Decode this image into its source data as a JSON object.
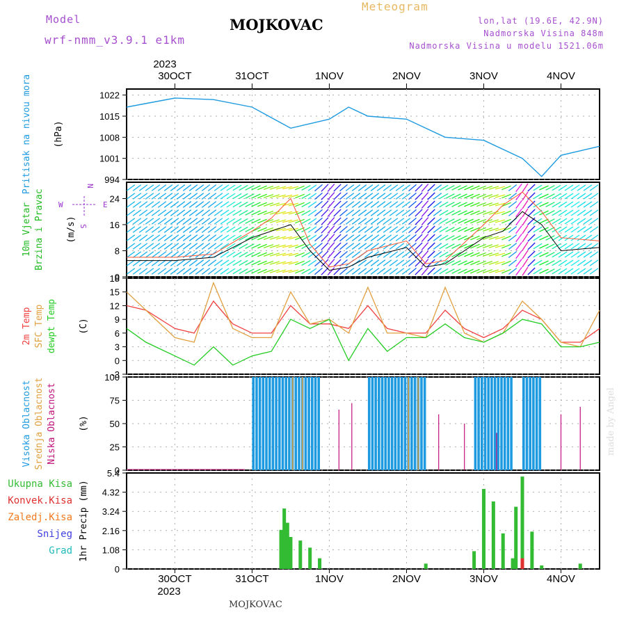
{
  "header": {
    "model_label": "Model",
    "model_name": "wrf-nmm_v3.9.1 e1km",
    "station": "MOJKOVAC",
    "product": "Meteogram",
    "lonlat": "lon,lat (19.6E, 42.9N)",
    "elevation": "Nadmorska Visina 848m",
    "model_elevation": "Nadmorska Visina u modelu 1521.06m",
    "footer_station": "MOJKOVAC",
    "credit": "made by Angel"
  },
  "colors": {
    "pressure": "#1e9be0",
    "wind_speed_lbl": "#22bb22",
    "temp2m": "#f04040",
    "sfc": "#e0a040",
    "dewpt": "#22cc22",
    "cloud_high": "#1e9be0",
    "cloud_mid": "#e0a040",
    "cloud_low": "#c0107a",
    "precip_total": "#33bb33",
    "precip_conv": "#e03030",
    "precip_frozen": "#f07a20",
    "snow": "#4040e0",
    "graupel": "#22bbbb",
    "compass": "#9933cc"
  },
  "time_axis": {
    "year": "2023",
    "days": [
      "30OCT",
      "31OCT",
      "1NOV",
      "2NOV",
      "3NOV",
      "4NOV"
    ],
    "start": "2023-10-29 09:00",
    "end": "2023-11-04 12:00"
  },
  "compass": {
    "north": "N",
    "east": "E",
    "south": "S",
    "west": "W"
  },
  "chart_data": [
    {
      "type": "line",
      "ylabel": [
        "Pritisak na nivou mora",
        "(hPa)"
      ],
      "yticks": [
        994,
        1001,
        1008,
        1015,
        1022
      ],
      "ylim": [
        994,
        1024
      ],
      "grid": true,
      "x": [
        "2023-10-29 09:00",
        "2023-10-30 00:00",
        "2023-10-30 12:00",
        "2023-10-31 00:00",
        "2023-10-31 12:00",
        "2023-11-01 00:00",
        "2023-11-01 06:00",
        "2023-11-01 12:00",
        "2023-11-02 00:00",
        "2023-11-02 12:00",
        "2023-11-03 00:00",
        "2023-11-03 12:00",
        "2023-11-03 18:00",
        "2023-11-04 00:00",
        "2023-11-04 12:00"
      ],
      "series": [
        {
          "values": [
            1018,
            1021,
            1020.5,
            1018,
            1011,
            1014,
            1018,
            1015,
            1014,
            1008,
            1007,
            1001,
            995,
            1002,
            1005
          ]
        }
      ]
    },
    {
      "type": "line",
      "ylabel": [
        "10m Vjetar",
        "Brzina i Pravac",
        "(m/s)"
      ],
      "yticks": [
        0,
        8,
        16,
        24
      ],
      "ylim": [
        0,
        29
      ],
      "grid": true,
      "x": [
        "2023-10-29 09:00",
        "2023-10-30 00:00",
        "2023-10-30 12:00",
        "2023-10-31 00:00",
        "2023-10-31 06:00",
        "2023-10-31 12:00",
        "2023-10-31 18:00",
        "2023-11-01 00:00",
        "2023-11-01 06:00",
        "2023-11-01 12:00",
        "2023-11-02 00:00",
        "2023-11-02 06:00",
        "2023-11-02 12:00",
        "2023-11-03 00:00",
        "2023-11-03 06:00",
        "2023-11-03 12:00",
        "2023-11-03 18:00",
        "2023-11-04 00:00",
        "2023-11-04 12:00"
      ],
      "series": [
        {
          "values": [
            5,
            5,
            6,
            12,
            14,
            16,
            8,
            2,
            3,
            6,
            9,
            3,
            4,
            12,
            14,
            20,
            16,
            8,
            9
          ]
        },
        {
          "values": [
            6,
            6,
            7,
            14,
            18,
            24,
            10,
            3,
            4,
            8,
            11,
            4,
            5,
            16,
            22,
            26,
            20,
            12,
            11
          ]
        }
      ]
    },
    {
      "type": "line",
      "ylabel": [
        "2m Temp",
        "SFC Temp",
        "dewpt Temp",
        "(C)"
      ],
      "yticks": [
        -3,
        0,
        3,
        6,
        9,
        12,
        15,
        18
      ],
      "ylim": [
        -3,
        18
      ],
      "grid": true,
      "x": [
        "2023-10-29 09:00",
        "2023-10-29 15:00",
        "2023-10-30 00:00",
        "2023-10-30 06:00",
        "2023-10-30 12:00",
        "2023-10-30 18:00",
        "2023-10-31 00:00",
        "2023-10-31 06:00",
        "2023-10-31 12:00",
        "2023-10-31 18:00",
        "2023-11-01 00:00",
        "2023-11-01 06:00",
        "2023-11-01 12:00",
        "2023-11-01 18:00",
        "2023-11-02 00:00",
        "2023-11-02 06:00",
        "2023-11-02 12:00",
        "2023-11-02 18:00",
        "2023-11-03 00:00",
        "2023-11-03 06:00",
        "2023-11-03 12:00",
        "2023-11-03 18:00",
        "2023-11-04 00:00",
        "2023-11-04 06:00",
        "2023-11-04 12:00"
      ],
      "series": [
        {
          "name": "2m Temp",
          "values": [
            12,
            11,
            7,
            6,
            13,
            8,
            6,
            6,
            12,
            8,
            8,
            7,
            12,
            7,
            6,
            6,
            11,
            7,
            5,
            7,
            11,
            9,
            4,
            4,
            7
          ]
        },
        {
          "name": "SFC Temp",
          "values": [
            15,
            11,
            5,
            4,
            17,
            7,
            5,
            5,
            15,
            8,
            9,
            6,
            16,
            6,
            6,
            5,
            16,
            6,
            4,
            6,
            13,
            9,
            4,
            3,
            11
          ]
        },
        {
          "name": "dewpt Temp",
          "values": [
            7,
            4,
            1,
            -1,
            3,
            -1,
            1,
            2,
            9,
            7,
            9,
            0,
            7,
            2,
            5,
            5,
            8,
            5,
            4,
            6,
            9,
            8,
            3,
            3,
            4
          ]
        }
      ]
    },
    {
      "type": "bar",
      "ylabel": [
        "Visoka Oblacnost",
        "Srednja Oblacnost",
        "Niska Oblacnost",
        "(%)"
      ],
      "yticks": [
        0,
        25,
        50,
        75,
        100
      ],
      "ylim": [
        0,
        100
      ],
      "grid": true,
      "series": [
        {
          "name": "Visoka Oblacnost",
          "ranges": [
            [
              "2023-10-31 00:00",
              "2023-10-31 21:00",
              100
            ],
            [
              "2023-11-01 12:00",
              "2023-11-02 06:00",
              100
            ],
            [
              "2023-11-02 21:00",
              "2023-11-03 09:00",
              100
            ],
            [
              "2023-11-03 12:00",
              "2023-11-03 18:00",
              100
            ]
          ]
        },
        {
          "name": "Srednja Oblacnost",
          "ranges": [
            [
              "2023-10-31 12:00",
              "2023-10-31 18:00",
              100
            ],
            [
              "2023-11-02 00:00",
              "2023-11-02 06:00",
              100
            ]
          ]
        },
        {
          "name": "Niska Oblacnost",
          "points": [
            [
              "2023-11-01 03:00",
              65
            ],
            [
              "2023-11-01 07:00",
              72
            ],
            [
              "2023-11-02 10:00",
              60
            ],
            [
              "2023-11-02 18:00",
              50
            ],
            [
              "2023-11-03 04:00",
              40
            ],
            [
              "2023-11-04 00:00",
              60
            ],
            [
              "2023-11-04 06:00",
              68
            ]
          ]
        }
      ]
    },
    {
      "type": "bar",
      "ylabel": [
        "1hr Precip (mm)"
      ],
      "yticks": [
        0,
        1.08,
        2.16,
        3.24,
        4.32,
        5.4
      ],
      "ylim": [
        0,
        5.4
      ],
      "grid": true,
      "legend": [
        "Ukupna Kisa",
        "Konvek.Kisa",
        "Zaledj.Kisa",
        "Snijeg",
        "Grad"
      ],
      "series": [
        {
          "name": "Ukupna Kisa",
          "points": [
            [
              "2023-10-31 09:00",
              2.2
            ],
            [
              "2023-10-31 10:00",
              3.4
            ],
            [
              "2023-10-31 11:00",
              2.6
            ],
            [
              "2023-10-31 12:00",
              1.8
            ],
            [
              "2023-10-31 15:00",
              1.6
            ],
            [
              "2023-10-31 18:00",
              1.2
            ],
            [
              "2023-10-31 21:00",
              0.6
            ],
            [
              "2023-11-02 06:00",
              0.3
            ],
            [
              "2023-11-02 21:00",
              1.0
            ],
            [
              "2023-11-03 00:00",
              4.5
            ],
            [
              "2023-11-03 03:00",
              3.8
            ],
            [
              "2023-11-03 06:00",
              2.0
            ],
            [
              "2023-11-03 09:00",
              0.6
            ],
            [
              "2023-11-03 10:00",
              3.5
            ],
            [
              "2023-11-03 12:00",
              5.2
            ],
            [
              "2023-11-03 15:00",
              2.1
            ],
            [
              "2023-11-03 18:00",
              0.2
            ],
            [
              "2023-11-04 06:00",
              0.3
            ]
          ]
        },
        {
          "name": "Konvek.Kisa",
          "points": [
            [
              "2023-11-03 12:00",
              0.6
            ]
          ]
        }
      ]
    }
  ]
}
